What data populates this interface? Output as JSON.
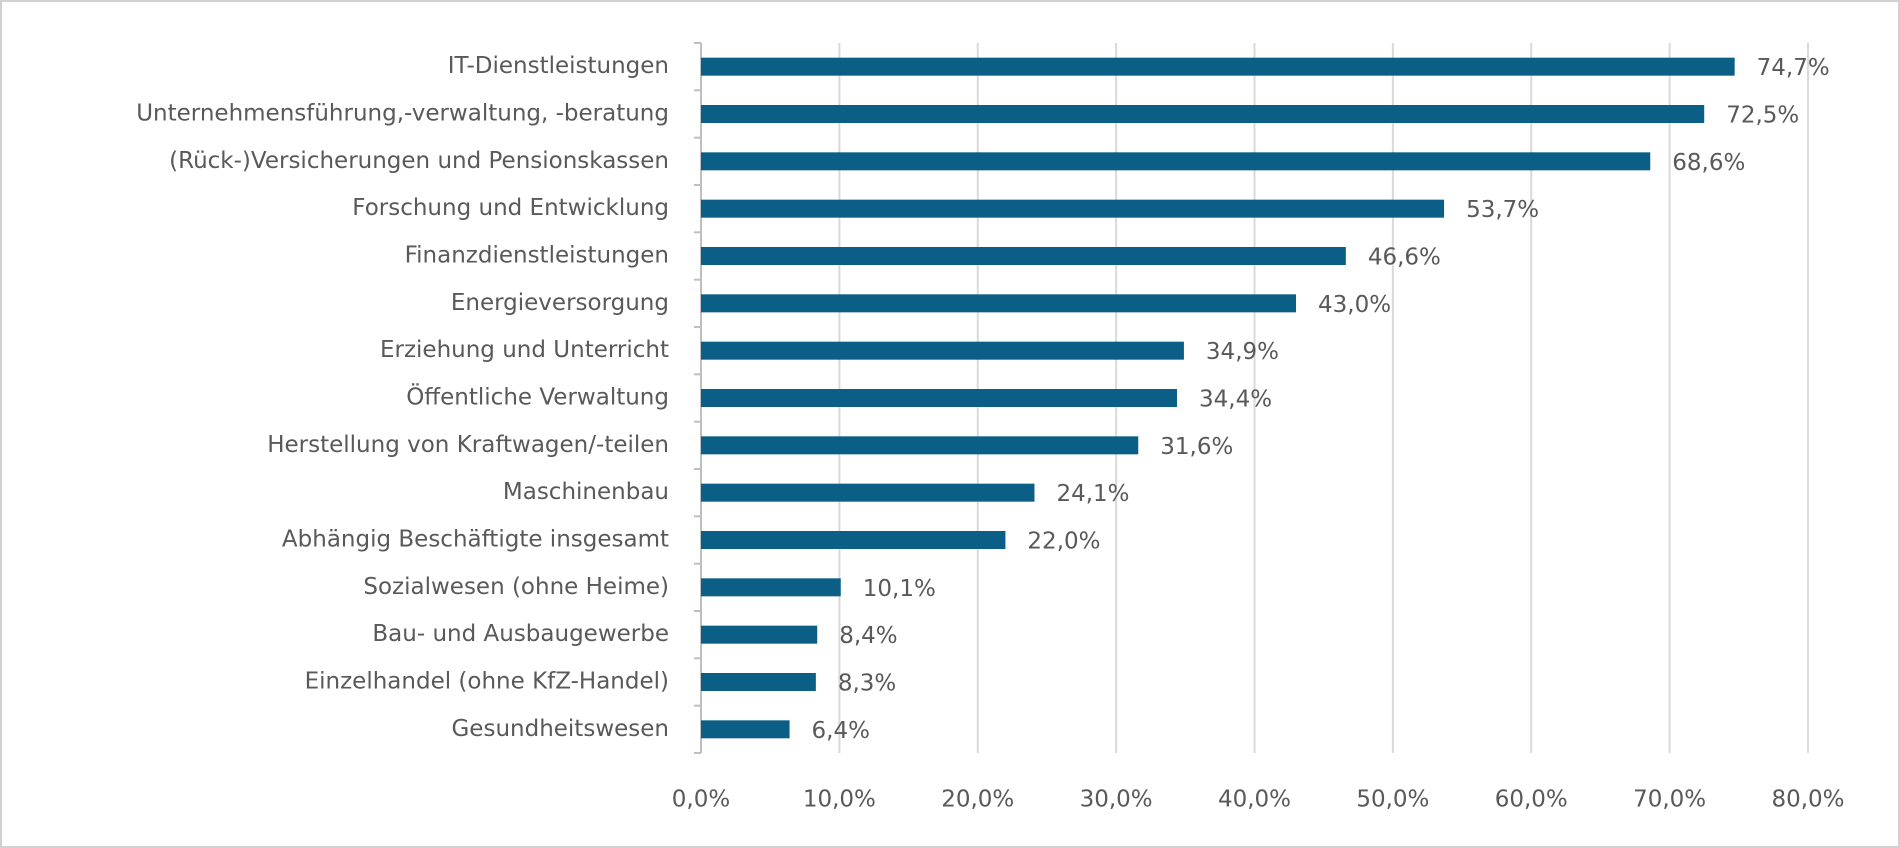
{
  "chart_data": {
    "type": "bar",
    "orientation": "horizontal",
    "categories": [
      "IT-Dienstleistungen",
      "Unternehmensführung,-verwaltung, -beratung",
      "(Rück-)Versicherungen und Pensionskassen",
      "Forschung und Entwicklung",
      "Finanzdienstleistungen",
      "Energieversorgung",
      "Erziehung und Unterricht",
      "Öffentliche Verwaltung",
      "Herstellung von Kraftwagen/-teilen",
      "Maschinenbau",
      "Abhängig Beschäftigte insgesamt",
      "Sozialwesen (ohne Heime)",
      "Bau- und Ausbaugewerbe",
      "Einzelhandel (ohne KfZ-Handel)",
      "Gesundheitswesen"
    ],
    "values": [
      74.7,
      72.5,
      68.6,
      53.7,
      46.6,
      43.0,
      34.9,
      34.4,
      31.6,
      24.1,
      22.0,
      10.1,
      8.4,
      8.3,
      6.4
    ],
    "value_labels": [
      "74,7%",
      "72,5%",
      "68,6%",
      "53,7%",
      "46,6%",
      "43,0%",
      "34,9%",
      "34,4%",
      "31,6%",
      "24,1%",
      "22,0%",
      "10,1%",
      "8,4%",
      "8,3%",
      "6,4%"
    ],
    "color": "#0b5f86",
    "xlim": [
      0,
      80
    ],
    "xticks": [
      {
        "value": 0,
        "label": "0,0%"
      },
      {
        "value": 10,
        "label": "10,0%"
      },
      {
        "value": 20,
        "label": "20,0%"
      },
      {
        "value": 30,
        "label": "30,0%"
      },
      {
        "value": 40,
        "label": "40,0%"
      },
      {
        "value": 50,
        "label": "50,0%"
      },
      {
        "value": 60,
        "label": "60,0%"
      },
      {
        "value": 70,
        "label": "70,0%"
      },
      {
        "value": 80,
        "label": "80,0%"
      }
    ],
    "grid": true
  }
}
